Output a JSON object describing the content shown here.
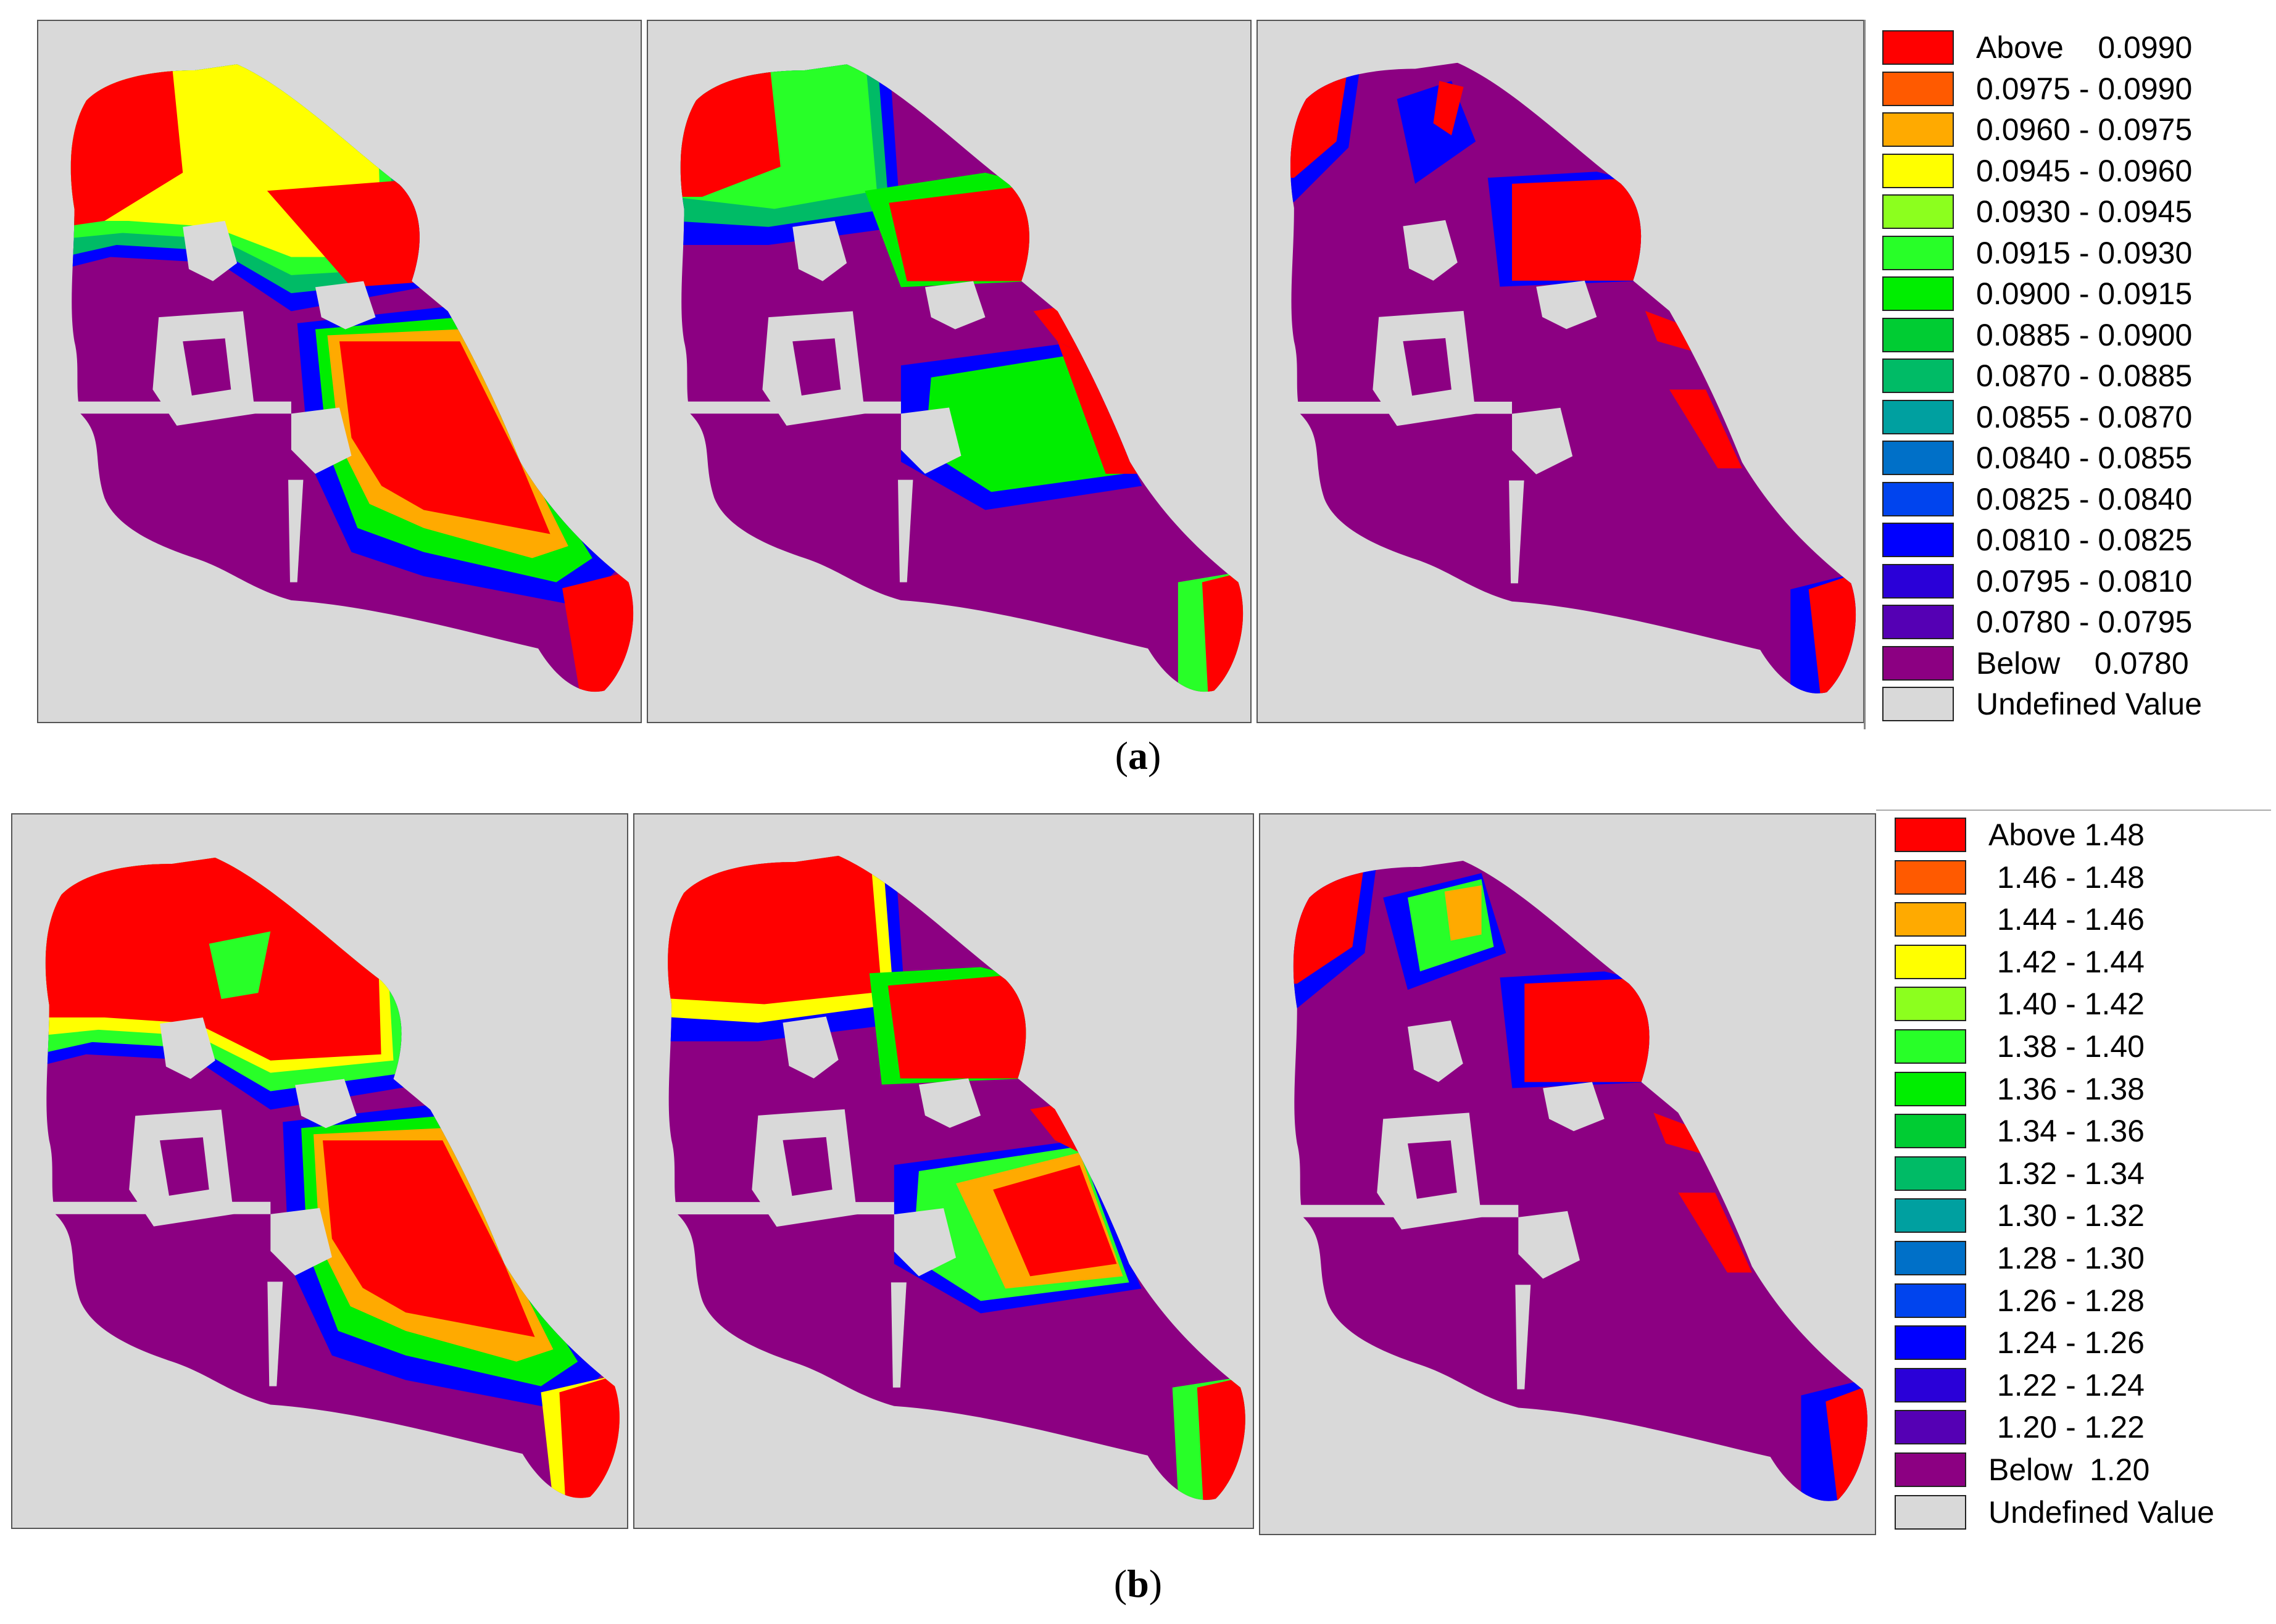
{
  "figure": {
    "caption_a": "(a)",
    "caption_a_letter": "a",
    "caption_b": "(b)",
    "caption_b_letter": "b"
  },
  "legend_a": {
    "items": [
      {
        "label": "Above    0.0990",
        "color": "#ff0000"
      },
      {
        "label": "0.0975 - 0.0990",
        "color": "#ff5a00"
      },
      {
        "label": "0.0960 - 0.0975",
        "color": "#ffaa00"
      },
      {
        "label": "0.0945 - 0.0960",
        "color": "#ffff00"
      },
      {
        "label": "0.0930 - 0.0945",
        "color": "#8cff1e"
      },
      {
        "label": "0.0915 - 0.0930",
        "color": "#28ff28"
      },
      {
        "label": "0.0900 - 0.0915",
        "color": "#00ee00"
      },
      {
        "label": "0.0885 - 0.0900",
        "color": "#00cc33"
      },
      {
        "label": "0.0870 - 0.0885",
        "color": "#00bb66"
      },
      {
        "label": "0.0855 - 0.0870",
        "color": "#00a0a0"
      },
      {
        "label": "0.0840 - 0.0855",
        "color": "#0070c8"
      },
      {
        "label": "0.0825 - 0.0840",
        "color": "#0044ee"
      },
      {
        "label": "0.0810 - 0.0825",
        "color": "#0000ff"
      },
      {
        "label": "0.0795 - 0.0810",
        "color": "#2a00d8"
      },
      {
        "label": "0.0780 - 0.0795",
        "color": "#5500b4"
      },
      {
        "label": "Below    0.0780",
        "color": "#8c0082"
      },
      {
        "label": "Undefined Value",
        "color": "#d9d9d9"
      }
    ]
  },
  "legend_b": {
    "items": [
      {
        "label": "Above 1.48",
        "color": "#ff0000"
      },
      {
        "label": " 1.46 - 1.48",
        "color": "#ff5a00"
      },
      {
        "label": " 1.44 - 1.46",
        "color": "#ffaa00"
      },
      {
        "label": " 1.42 - 1.44",
        "color": "#ffff00"
      },
      {
        "label": " 1.40 - 1.42",
        "color": "#8cff1e"
      },
      {
        "label": " 1.38 - 1.40",
        "color": "#28ff28"
      },
      {
        "label": " 1.36 - 1.38",
        "color": "#00ee00"
      },
      {
        "label": " 1.34 - 1.36",
        "color": "#00cc33"
      },
      {
        "label": " 1.32 - 1.34",
        "color": "#00bb66"
      },
      {
        "label": " 1.30 - 1.32",
        "color": "#00a0a0"
      },
      {
        "label": " 1.28 - 1.30",
        "color": "#0070c8"
      },
      {
        "label": " 1.26 - 1.28",
        "color": "#0044ee"
      },
      {
        "label": " 1.24 - 1.26",
        "color": "#0000ff"
      },
      {
        "label": " 1.22 - 1.24",
        "color": "#2a00d8"
      },
      {
        "label": " 1.20 - 1.22",
        "color": "#5500b4"
      },
      {
        "label": "Below  1.20",
        "color": "#8c0082"
      },
      {
        "label": "Undefined Value",
        "color": "#d9d9d9"
      }
    ]
  },
  "colors": {
    "undefined": "#d9d9d9",
    "below": "#8c0082",
    "above": "#ff0000"
  }
}
